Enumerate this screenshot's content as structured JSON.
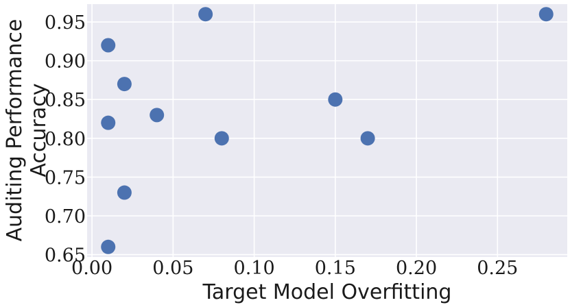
{
  "chart_data": {
    "type": "scatter",
    "title": "",
    "xlabel": "Target Model Overfitting",
    "ylabel_lines": [
      "Auditing Performance",
      "Accuracy"
    ],
    "xlim": [
      -0.003,
      0.293
    ],
    "ylim": [
      0.647,
      0.973
    ],
    "xticks": [
      0.0,
      0.05,
      0.1,
      0.15,
      0.2,
      0.25
    ],
    "xtick_labels": [
      "0.00",
      "0.05",
      "0.10",
      "0.15",
      "0.20",
      "0.25"
    ],
    "yticks": [
      0.65,
      0.7,
      0.75,
      0.8,
      0.85,
      0.9,
      0.95
    ],
    "ytick_labels": [
      "0.65",
      "0.70",
      "0.75",
      "0.80",
      "0.85",
      "0.90",
      "0.95"
    ],
    "grid": true,
    "colors": {
      "background": "#eaeaf2",
      "grid": "#ffffff",
      "point": "#4c72b0"
    },
    "points": [
      {
        "x": 0.07,
        "y": 0.96
      },
      {
        "x": 0.28,
        "y": 0.96
      },
      {
        "x": 0.01,
        "y": 0.92
      },
      {
        "x": 0.02,
        "y": 0.87
      },
      {
        "x": 0.15,
        "y": 0.85
      },
      {
        "x": 0.04,
        "y": 0.83
      },
      {
        "x": 0.01,
        "y": 0.82
      },
      {
        "x": 0.08,
        "y": 0.8
      },
      {
        "x": 0.17,
        "y": 0.8
      },
      {
        "x": 0.02,
        "y": 0.73
      },
      {
        "x": 0.01,
        "y": 0.66
      }
    ]
  }
}
